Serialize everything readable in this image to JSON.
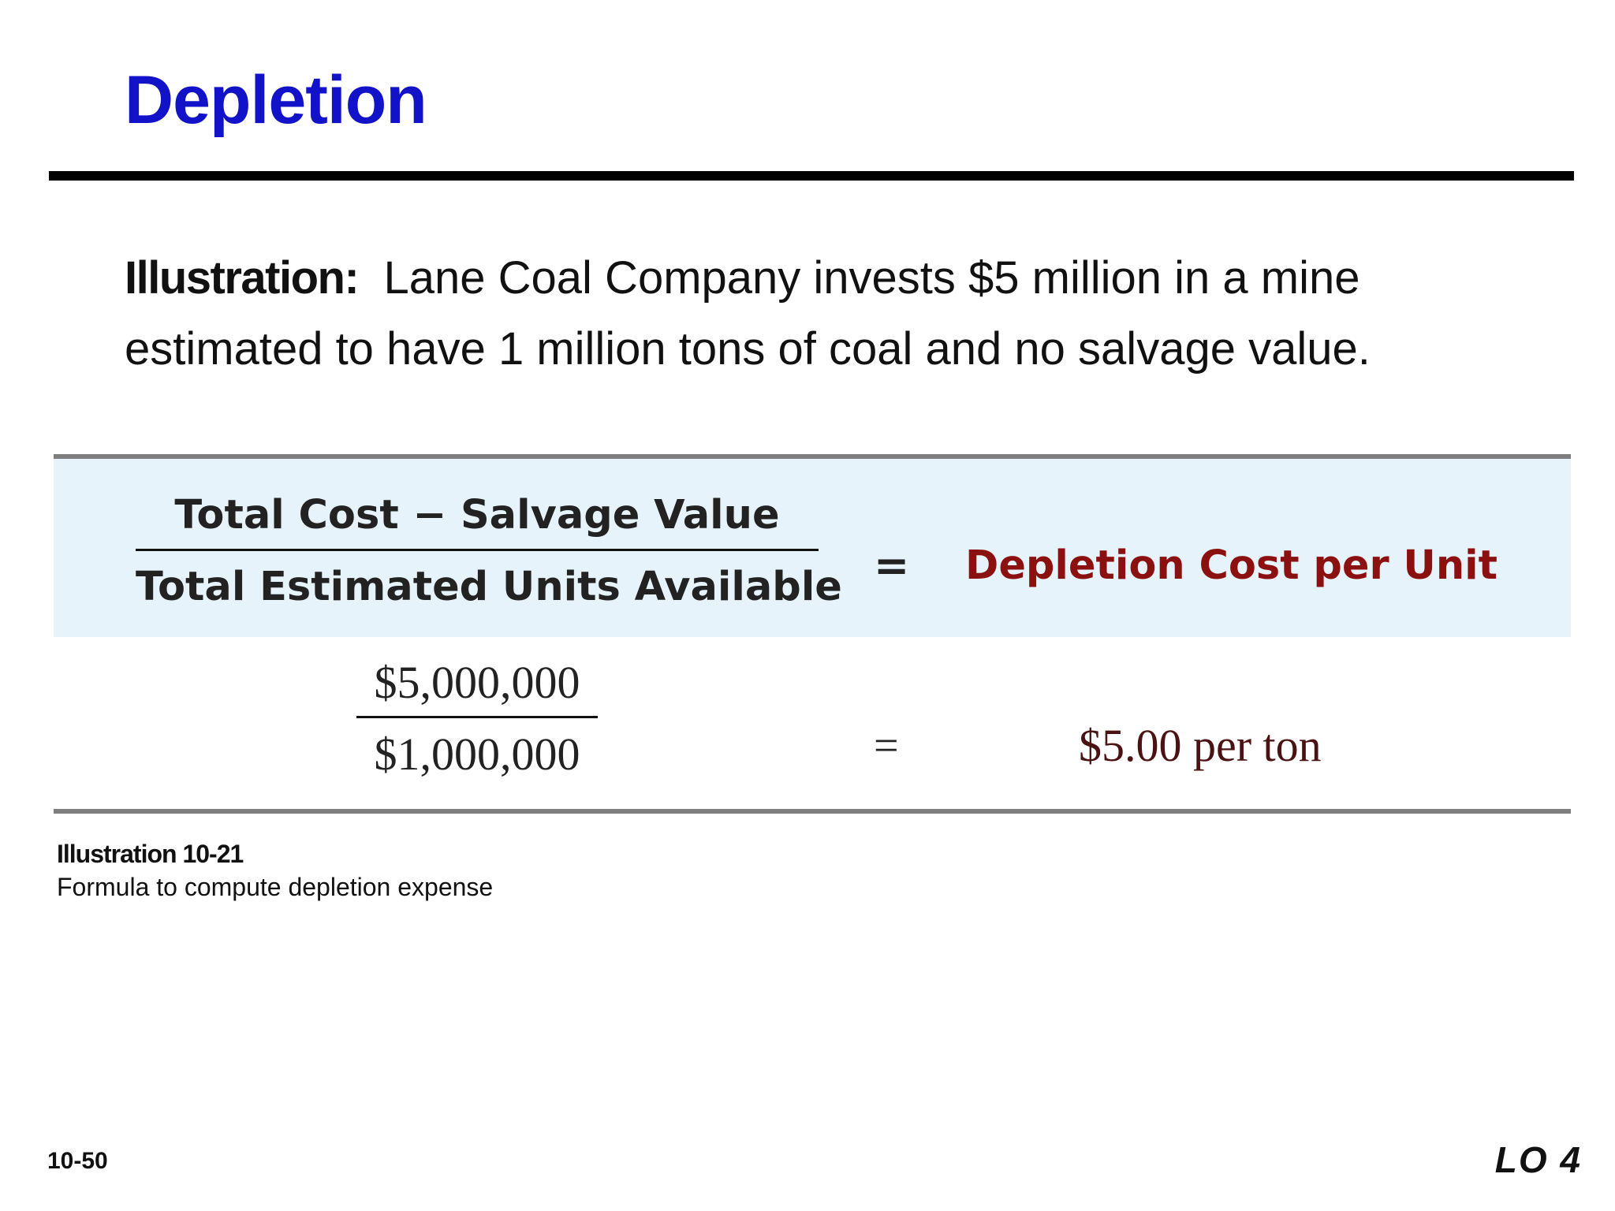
{
  "slide": {
    "title": "Depletion",
    "intro_lead": "Illustration:",
    "intro_text": "Lane Coal Company invests $5 million in a mine estimated to have 1 million tons of coal and no salvage value."
  },
  "formula": {
    "general": {
      "numerator": "Total Cost − Salvage Value",
      "denominator": "Total Estimated Units Available",
      "equals": "=",
      "result": "Depletion Cost per Unit"
    },
    "specific": {
      "numerator": "$5,000,000",
      "denominator": "$1,000,000",
      "equals": "=",
      "result": "$5.00 per ton"
    }
  },
  "caption": {
    "title": "Illustration 10-21",
    "text": "Formula to compute depletion expense"
  },
  "footer": {
    "page_number": "10-50",
    "learning_objective": "LO 4"
  },
  "colors": {
    "title": "#1212c8",
    "result_general": "#8b1010",
    "band_background": "#e7f3fb",
    "rule_gray": "#7f7f7f"
  }
}
